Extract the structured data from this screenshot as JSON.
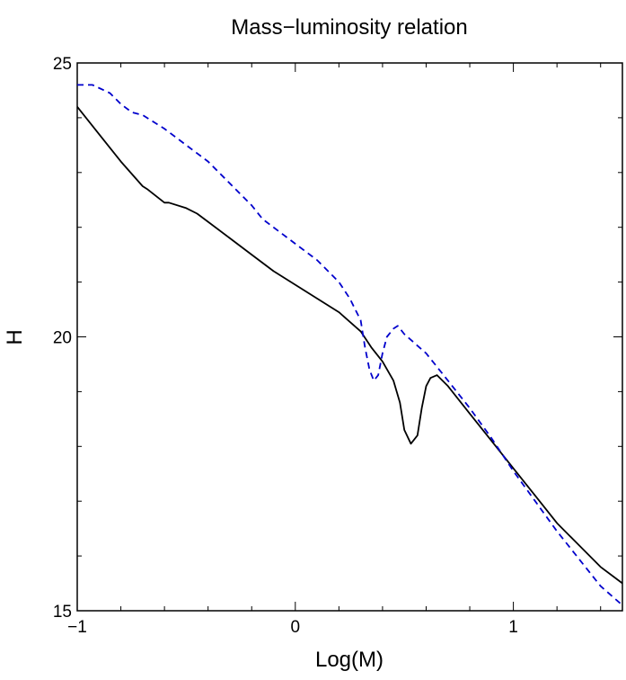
{
  "chart_data": {
    "type": "line",
    "title": "Mass−luminosity relation",
    "xlabel": "Log(M)",
    "ylabel": "H",
    "xlim": [
      -1,
      1.5
    ],
    "ylim": [
      15,
      25
    ],
    "x_ticks": [
      {
        "value": -1,
        "label": "−1"
      },
      {
        "value": 0,
        "label": "0"
      },
      {
        "value": 1,
        "label": "1"
      }
    ],
    "y_ticks": [
      {
        "value": 15,
        "label": "15"
      },
      {
        "value": 20,
        "label": "20"
      },
      {
        "value": 25,
        "label": "25"
      }
    ],
    "series": [
      {
        "color": "#000000",
        "dash": "solid",
        "points": [
          [
            -1.0,
            24.2
          ],
          [
            -0.9,
            23.7
          ],
          [
            -0.8,
            23.2
          ],
          [
            -0.7,
            22.75
          ],
          [
            -0.68,
            22.7
          ],
          [
            -0.6,
            22.45
          ],
          [
            -0.58,
            22.45
          ],
          [
            -0.5,
            22.35
          ],
          [
            -0.45,
            22.25
          ],
          [
            -0.4,
            22.1
          ],
          [
            -0.3,
            21.8
          ],
          [
            -0.2,
            21.5
          ],
          [
            -0.1,
            21.2
          ],
          [
            0.0,
            20.95
          ],
          [
            0.1,
            20.7
          ],
          [
            0.2,
            20.45
          ],
          [
            0.3,
            20.1
          ],
          [
            0.35,
            19.8
          ],
          [
            0.4,
            19.55
          ],
          [
            0.45,
            19.2
          ],
          [
            0.48,
            18.8
          ],
          [
            0.5,
            18.3
          ],
          [
            0.53,
            18.05
          ],
          [
            0.56,
            18.2
          ],
          [
            0.58,
            18.7
          ],
          [
            0.6,
            19.1
          ],
          [
            0.62,
            19.25
          ],
          [
            0.65,
            19.3
          ],
          [
            0.7,
            19.1
          ],
          [
            0.8,
            18.6
          ],
          [
            0.9,
            18.1
          ],
          [
            1.0,
            17.6
          ],
          [
            1.1,
            17.1
          ],
          [
            1.2,
            16.6
          ],
          [
            1.3,
            16.2
          ],
          [
            1.4,
            15.8
          ],
          [
            1.5,
            15.5
          ]
        ]
      },
      {
        "color": "#0000cc",
        "dash": "dashed",
        "points": [
          [
            -1.0,
            24.6
          ],
          [
            -0.93,
            24.6
          ],
          [
            -0.85,
            24.45
          ],
          [
            -0.8,
            24.25
          ],
          [
            -0.75,
            24.1
          ],
          [
            -0.7,
            24.05
          ],
          [
            -0.6,
            23.8
          ],
          [
            -0.5,
            23.5
          ],
          [
            -0.4,
            23.2
          ],
          [
            -0.3,
            22.8
          ],
          [
            -0.2,
            22.4
          ],
          [
            -0.15,
            22.15
          ],
          [
            -0.1,
            22.0
          ],
          [
            0.0,
            21.7
          ],
          [
            0.1,
            21.4
          ],
          [
            0.2,
            21.0
          ],
          [
            0.25,
            20.7
          ],
          [
            0.3,
            20.3
          ],
          [
            0.32,
            19.8
          ],
          [
            0.34,
            19.4
          ],
          [
            0.36,
            19.2
          ],
          [
            0.38,
            19.3
          ],
          [
            0.4,
            19.7
          ],
          [
            0.42,
            20.0
          ],
          [
            0.45,
            20.15
          ],
          [
            0.47,
            20.2
          ],
          [
            0.5,
            20.05
          ],
          [
            0.6,
            19.7
          ],
          [
            0.7,
            19.2
          ],
          [
            0.8,
            18.7
          ],
          [
            0.9,
            18.15
          ],
          [
            1.0,
            17.55
          ],
          [
            1.1,
            17.0
          ],
          [
            1.2,
            16.45
          ],
          [
            1.3,
            15.95
          ],
          [
            1.4,
            15.45
          ],
          [
            1.5,
            15.1
          ]
        ]
      }
    ]
  }
}
